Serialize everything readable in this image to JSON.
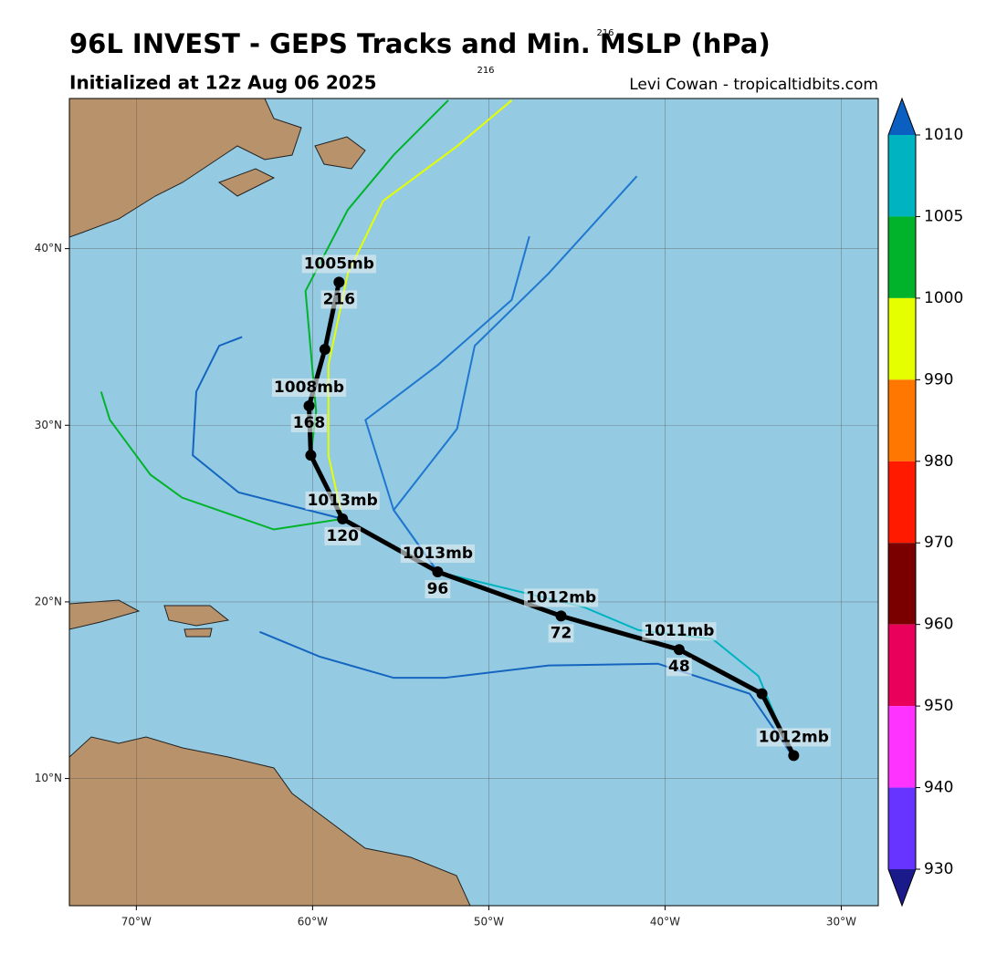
{
  "header": {
    "title": "96L INVEST - GEPS Tracks and Min. MSLP (hPa)",
    "subtitle": "Initialized at 12z Aug 06 2025",
    "credit": "Levi Cowan - tropicaltidbits.com",
    "stray_labels": [
      "216",
      "216"
    ]
  },
  "chart_data": {
    "type": "track-map",
    "xlim": [
      -73.8,
      -27.9
    ],
    "ylim": [
      2.8,
      48.5
    ],
    "xticks": [
      {
        "value": -70,
        "label": "70°W"
      },
      {
        "value": -60,
        "label": "60°W"
      },
      {
        "value": -50,
        "label": "50°W"
      },
      {
        "value": -40,
        "label": "40°W"
      },
      {
        "value": -30,
        "label": "30°W"
      }
    ],
    "yticks": [
      {
        "value": 10,
        "label": "10°N"
      },
      {
        "value": 20,
        "label": "20°N"
      },
      {
        "value": 30,
        "label": "30°N"
      },
      {
        "value": 40,
        "label": "40°N"
      }
    ],
    "grid": true,
    "tracks": [
      {
        "color": "#1565c0",
        "lon": [
          -32.85,
          -35.2,
          -40.4,
          -46.6,
          -52.5,
          -55.4,
          -59.6,
          -63.0
        ],
        "lat": [
          11.4,
          14.8,
          16.5,
          16.4,
          15.7,
          15.7,
          16.9,
          18.3
        ]
      },
      {
        "color": "#1f77d0",
        "lon": [
          -32.7,
          -34.5,
          -39.2,
          -45.9,
          -52.9,
          -55.4,
          -51.8,
          -50.8,
          -46.6,
          -41.6
        ],
        "lat": [
          11.3,
          14.8,
          17.3,
          19.2,
          21.7,
          25.2,
          29.8,
          34.5,
          38.6,
          44.1
        ]
      },
      {
        "color": "#e5ff00",
        "lon": [
          -58.3,
          -59.1,
          -59.1,
          -58.0,
          -56.0,
          -51.8,
          -48.7
        ],
        "lat": [
          24.7,
          28.3,
          33.4,
          38.6,
          42.7,
          45.8,
          48.4
        ]
      },
      {
        "color": "#00b32a",
        "lon": [
          -60.1,
          -59.8,
          -60.4,
          -58.0,
          -55.4,
          -52.3
        ],
        "lat": [
          28.3,
          30.8,
          37.6,
          42.2,
          45.3,
          48.4
        ]
      },
      {
        "color": "#00b32a",
        "lon": [
          -58.3,
          -62.2,
          -67.4,
          -69.2,
          -71.5,
          -72.0
        ],
        "lat": [
          24.7,
          24.1,
          25.9,
          27.2,
          30.3,
          31.9
        ]
      },
      {
        "color": "#1565c0",
        "lon": [
          -58.3,
          -64.2,
          -66.8,
          -66.6,
          -65.3,
          -64.0
        ],
        "lat": [
          24.7,
          26.2,
          28.3,
          31.9,
          34.5,
          35.0
        ]
      },
      {
        "color": "#1f77d0",
        "lon": [
          -52.9,
          -55.4,
          -57.0,
          -52.9,
          -48.7,
          -47.7
        ],
        "lat": [
          21.7,
          25.2,
          30.3,
          33.4,
          37.1,
          40.7
        ]
      },
      {
        "color": "#00b3c0",
        "lon": [
          -32.85,
          -34.7,
          -37.3,
          -41.5,
          -44.6,
          -52.9
        ],
        "lat": [
          11.4,
          15.8,
          17.9,
          18.4,
          19.7,
          21.7
        ]
      }
    ],
    "mean_track": {
      "color": "#000000",
      "points": [
        {
          "lon": -32.7,
          "lat": 11.3,
          "pressure": "1012mb",
          "hour": null
        },
        {
          "lon": -34.5,
          "lat": 14.8,
          "pressure": null,
          "hour": null
        },
        {
          "lon": -39.2,
          "lat": 17.3,
          "pressure": "1011mb",
          "hour": 48
        },
        {
          "lon": -45.9,
          "lat": 19.2,
          "pressure": "1012mb",
          "hour": 72
        },
        {
          "lon": -52.9,
          "lat": 21.7,
          "pressure": "1013mb",
          "hour": 96
        },
        {
          "lon": -58.3,
          "lat": 24.7,
          "pressure": "1013mb",
          "hour": 120
        },
        {
          "lon": -60.1,
          "lat": 28.3,
          "pressure": null,
          "hour": null
        },
        {
          "lon": -60.2,
          "lat": 31.1,
          "pressure": "1008mb",
          "hour": 168
        },
        {
          "lon": -59.3,
          "lat": 34.3,
          "pressure": null,
          "hour": null
        },
        {
          "lon": -58.5,
          "lat": 38.1,
          "pressure": "1005mb",
          "hour": 216
        }
      ]
    },
    "colorbar": {
      "levels": [
        1010,
        1005,
        1000,
        990,
        980,
        970,
        960,
        950,
        940,
        930
      ],
      "colors": [
        "#00b3c0",
        "#00b32a",
        "#e5ff00",
        "#ff7700",
        "#ff1a00",
        "#7a0000",
        "#e8005a",
        "#ff33ff",
        "#6633ff"
      ],
      "over_color": "#0a5fc0",
      "under_color": "#1a1a8a"
    }
  }
}
